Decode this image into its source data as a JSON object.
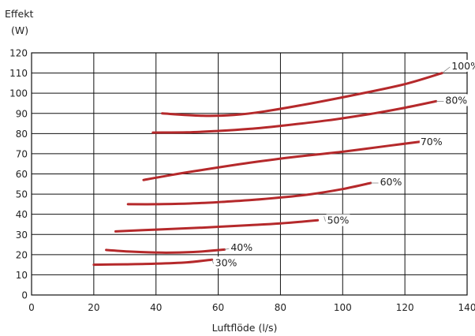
{
  "chart_data": {
    "type": "line",
    "title": "",
    "ylabel": [
      "Effekt",
      "(W)"
    ],
    "xlabel": "Luftflöde (l/s)",
    "xlim": [
      0,
      140
    ],
    "ylim": [
      0,
      120
    ],
    "xticks": [
      0,
      20,
      40,
      60,
      80,
      100,
      120,
      140
    ],
    "yticks": [
      0,
      10,
      20,
      30,
      40,
      50,
      60,
      70,
      80,
      90,
      100,
      110,
      120
    ],
    "grid": true,
    "colors": {
      "line": "#b5292b",
      "grid": "#111111",
      "text": "#222222"
    },
    "series": [
      {
        "name": "100%",
        "points": [
          [
            42,
            90
          ],
          [
            55,
            88.8
          ],
          [
            65,
            89.2
          ],
          [
            75,
            91
          ],
          [
            90,
            95
          ],
          [
            105,
            99.5
          ],
          [
            120,
            104.5
          ],
          [
            132,
            110
          ]
        ]
      },
      {
        "name": "80%",
        "points": [
          [
            39,
            80.5
          ],
          [
            50,
            80.6
          ],
          [
            60,
            81.3
          ],
          [
            70,
            82.3
          ],
          [
            80,
            83.8
          ],
          [
            95,
            86.5
          ],
          [
            110,
            90
          ],
          [
            120,
            92.8
          ],
          [
            130,
            96
          ]
        ]
      },
      {
        "name": "70%",
        "points": [
          [
            36,
            57
          ],
          [
            45,
            59.5
          ],
          [
            55,
            62
          ],
          [
            70,
            65.5
          ],
          [
            85,
            68.5
          ],
          [
            100,
            71
          ],
          [
            115,
            74
          ],
          [
            125,
            76
          ]
        ]
      },
      {
        "name": "60%",
        "points": [
          [
            31,
            45
          ],
          [
            40,
            45
          ],
          [
            50,
            45.3
          ],
          [
            60,
            46
          ],
          [
            70,
            47
          ],
          [
            80,
            48.3
          ],
          [
            90,
            50
          ],
          [
            100,
            52.5
          ],
          [
            109,
            55.5
          ]
        ]
      },
      {
        "name": "50%",
        "points": [
          [
            27,
            31.5
          ],
          [
            40,
            32.4
          ],
          [
            55,
            33.4
          ],
          [
            70,
            34.6
          ],
          [
            80,
            35.5
          ],
          [
            92,
            37
          ]
        ]
      },
      {
        "name": "40%",
        "points": [
          [
            24,
            22.3
          ],
          [
            32,
            21.5
          ],
          [
            42,
            21
          ],
          [
            52,
            21.3
          ],
          [
            62,
            22.5
          ]
        ]
      },
      {
        "name": "30%",
        "points": [
          [
            20,
            15
          ],
          [
            30,
            15.2
          ],
          [
            40,
            15.5
          ],
          [
            50,
            16.2
          ],
          [
            58,
            17.5
          ]
        ]
      }
    ],
    "series_labels": [
      {
        "text": "100%",
        "at": [
          135,
          113
        ],
        "leader_from": [
          132,
          110
        ]
      },
      {
        "text": "80%",
        "at": [
          133,
          96
        ],
        "leader_from": [
          130,
          96
        ]
      },
      {
        "text": "70%",
        "at": [
          125,
          75.5
        ],
        "leader_from": [
          125,
          75.5
        ]
      },
      {
        "text": "60%",
        "at": [
          112,
          55.5
        ],
        "leader_from": [
          109,
          55.5
        ]
      },
      {
        "text": "50%",
        "at": [
          95,
          36.5
        ],
        "leader_from": [
          94,
          39
        ]
      },
      {
        "text": "40%",
        "at": [
          64,
          23
        ],
        "leader_from": [
          62,
          22.5
        ]
      },
      {
        "text": "30%",
        "at": [
          59,
          15.5
        ],
        "leader_from": [
          58,
          17.5
        ]
      }
    ]
  }
}
